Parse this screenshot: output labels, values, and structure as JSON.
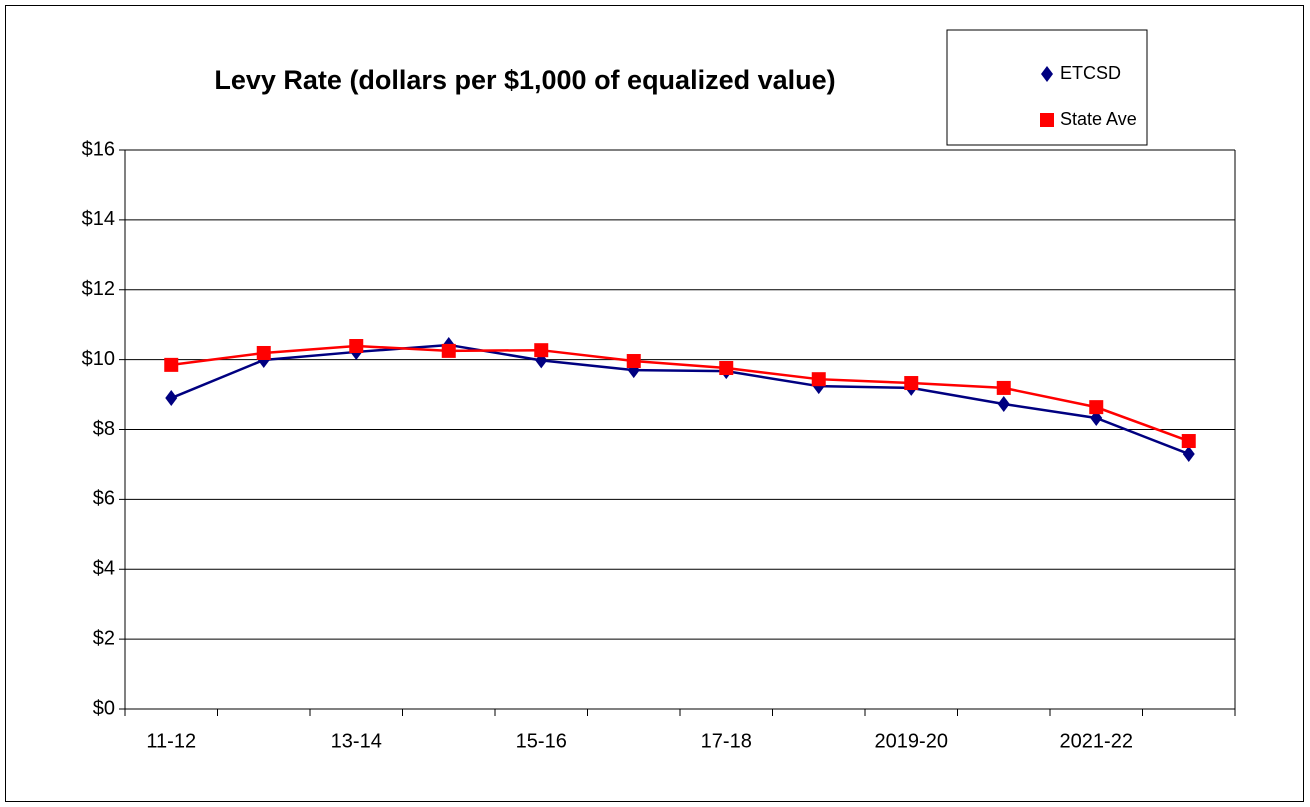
{
  "chart_data": {
    "type": "line",
    "title": "Levy Rate (dollars per $1,000 of equalized value)",
    "categories": [
      "11-12",
      null,
      "13-14",
      null,
      "15-16",
      null,
      "17-18",
      null,
      "2019-20",
      null,
      "2021-22",
      null
    ],
    "series": [
      {
        "name": "ETCSD",
        "color": "#000080",
        "marker": "diamond",
        "values": [
          8.9,
          9.99,
          10.22,
          10.42,
          9.98,
          9.7,
          9.67,
          9.24,
          9.19,
          8.73,
          8.33,
          7.3
        ]
      },
      {
        "name": "State Ave",
        "color": "#ff0000",
        "marker": "square",
        "values": [
          9.85,
          10.19,
          10.39,
          10.25,
          10.27,
          9.96,
          9.76,
          9.44,
          9.33,
          9.19,
          8.64,
          7.67
        ]
      }
    ],
    "ylim": [
      0,
      16
    ],
    "yticks": [
      {
        "value": 0,
        "label": "$0"
      },
      {
        "value": 2,
        "label": "$2"
      },
      {
        "value": 4,
        "label": "$4"
      },
      {
        "value": 6,
        "label": "$6"
      },
      {
        "value": 8,
        "label": "$8"
      },
      {
        "value": 10,
        "label": "$10"
      },
      {
        "value": 12,
        "label": "$12"
      },
      {
        "value": 14,
        "label": "$14"
      },
      {
        "value": 16,
        "label": "$16"
      }
    ],
    "grid": true,
    "legend": "top-right"
  }
}
